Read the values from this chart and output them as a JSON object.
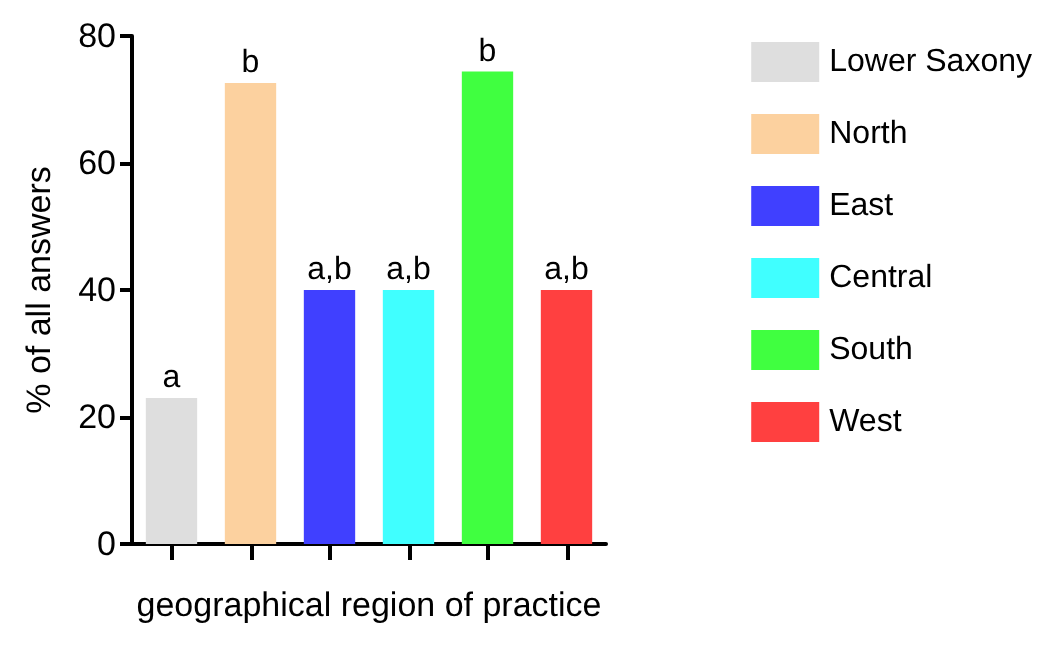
{
  "chart_data": {
    "type": "bar",
    "xlabel": "geographical region of practice",
    "ylabel": "% of all answers",
    "categories": [
      null,
      null,
      null,
      null,
      null,
      null
    ],
    "series": [
      {
        "name": "Lower Saxony",
        "color": "#dedede",
        "values": [
          23,
          null,
          null,
          null,
          null,
          null
        ],
        "value_labels": [
          "a",
          null,
          null,
          null,
          null,
          null
        ]
      },
      {
        "name": "North",
        "color": "#fcd19f",
        "values": [
          null,
          72.6,
          null,
          null,
          null,
          null
        ],
        "value_labels": [
          null,
          "b",
          null,
          null,
          null,
          null
        ]
      },
      {
        "name": "East",
        "color": "#4040ff",
        "values": [
          null,
          null,
          40,
          null,
          null,
          null
        ],
        "value_labels": [
          null,
          null,
          "a,b",
          null,
          null,
          null
        ]
      },
      {
        "name": "Central",
        "color": "#40ffff",
        "values": [
          null,
          null,
          null,
          40,
          null,
          null
        ],
        "value_labels": [
          null,
          null,
          null,
          "a,b",
          null,
          null
        ]
      },
      {
        "name": "South",
        "color": "#40ff40",
        "values": [
          null,
          null,
          null,
          null,
          74.4,
          null
        ],
        "value_labels": [
          null,
          null,
          null,
          null,
          "b",
          null
        ]
      },
      {
        "name": "West",
        "color": "#ff4040",
        "values": [
          null,
          null,
          null,
          null,
          null,
          40
        ],
        "value_labels": [
          null,
          null,
          null,
          null,
          null,
          "a,b"
        ]
      }
    ],
    "ylim": [
      0,
      80
    ],
    "yticks": [
      0,
      20,
      40,
      60,
      80
    ],
    "grid": false,
    "legend": "right",
    "tick_labels": "y"
  }
}
